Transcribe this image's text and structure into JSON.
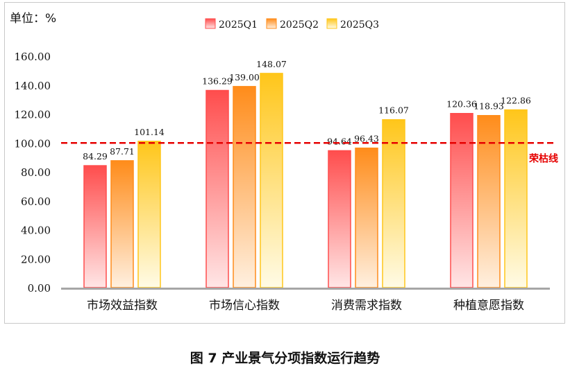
{
  "unit_label": "单位：%",
  "figure_caption": "图 7  产业景气分项指数运行趋势",
  "chart_data": {
    "type": "bar",
    "categories": [
      "市场效益指数",
      "市场信心指数",
      "消费需求指数",
      "种植意愿指数"
    ],
    "series": [
      {
        "name": "2025Q1",
        "values": [
          84.29,
          136.29,
          94.64,
          120.36
        ],
        "color_top": "#ff4d4d",
        "color_bottom": "#ffe6e6"
      },
      {
        "name": "2025Q2",
        "values": [
          87.71,
          139.0,
          96.43,
          118.93
        ],
        "color_top": "#ff8c1a",
        "color_bottom": "#fff0e0"
      },
      {
        "name": "2025Q3",
        "values": [
          101.14,
          148.07,
          116.07,
          122.86
        ],
        "color_top": "#ffc61a",
        "color_bottom": "#fffbe6"
      }
    ],
    "data_labels": [
      [
        "84.29",
        "136.29",
        "94.64",
        "120.36"
      ],
      [
        "87.71",
        "139.00",
        "96.43",
        "118.93"
      ],
      [
        "101.14",
        "148.07",
        "116.07",
        "122.86"
      ]
    ],
    "y_ticks": [
      "0.00",
      "20.00",
      "40.00",
      "60.00",
      "80.00",
      "100.00",
      "120.00",
      "140.00",
      "160.00"
    ],
    "ylim": [
      0,
      160
    ],
    "reference_line": {
      "value": 100,
      "label": "荣枯线",
      "color": "#e60000"
    },
    "legend_position": "top-center",
    "grid": false
  }
}
